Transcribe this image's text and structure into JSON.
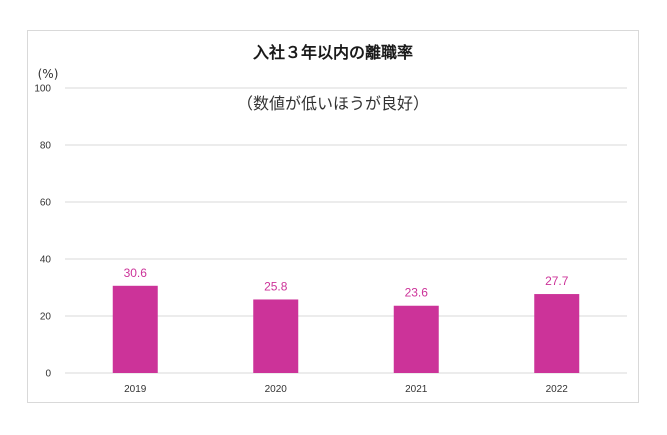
{
  "chart_data": {
    "type": "bar",
    "title": "入社３年以内の離職率",
    "subtitle": "（数値が低いほうが良好）",
    "ylabel": "(%)",
    "xlabel": "",
    "categories": [
      "2019",
      "2020",
      "2021",
      "2022"
    ],
    "values": [
      30.6,
      25.8,
      23.6,
      27.7
    ],
    "data_labels": [
      "30.6",
      "25.8",
      "23.6",
      "27.7"
    ],
    "ylim": [
      0,
      100
    ],
    "yticks": [
      0,
      20,
      40,
      60,
      80,
      100
    ],
    "grid": true,
    "legend": "none",
    "bar_color": "#cc3399",
    "label_color": "#cc3399"
  }
}
